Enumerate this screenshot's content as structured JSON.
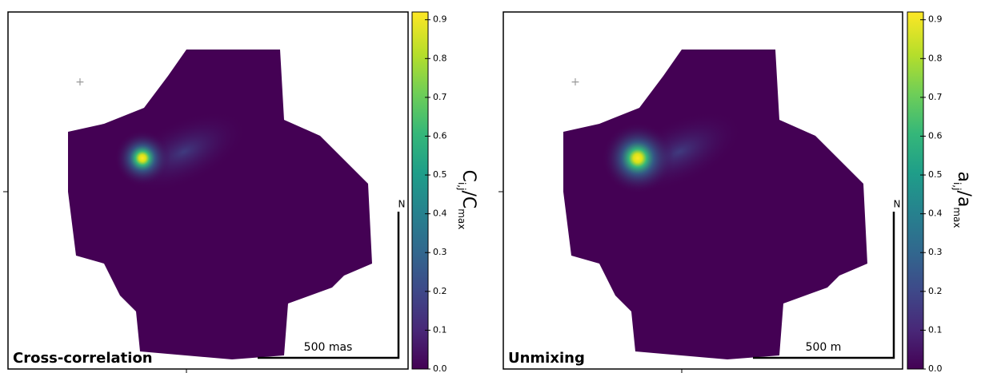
{
  "chart_data": [
    {
      "type": "heatmap",
      "title": "Cross-correlation",
      "colorbar": {
        "label": [
          "C",
          "i,j",
          "/C",
          "max"
        ],
        "ylim": [
          0,
          0.92
        ],
        "yticks": [
          {
            "value": 0,
            "label": "0.0"
          },
          0.1,
          0.2,
          0.3,
          0.4,
          0.5,
          0.6,
          0.7,
          0.8,
          0.9
        ]
      },
      "scale_bar": "500 mas",
      "north": "N"
    },
    {
      "type": "heatmap",
      "title": "Unmixing",
      "colorbar": {
        "label": [
          "a",
          "i,j",
          "/a",
          "max"
        ],
        "ylim": [
          0,
          0.92
        ],
        "yticks": [
          {
            "value": 0,
            "label": "0.0"
          },
          0.1,
          0.2,
          0.3,
          0.4,
          0.5,
          0.6,
          0.7,
          0.8,
          0.9
        ]
      },
      "scale_bar": "500 m",
      "north": "N"
    }
  ]
}
